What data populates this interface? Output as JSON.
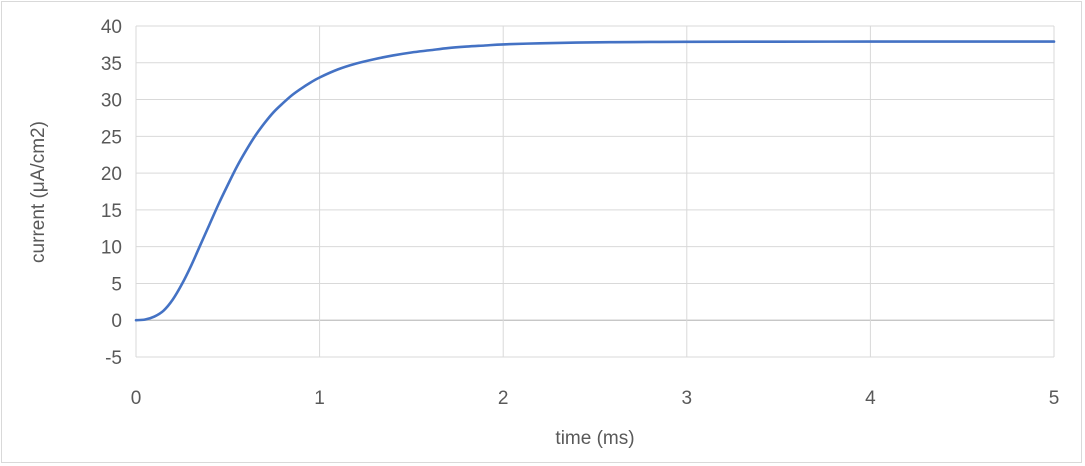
{
  "chart_data": {
    "type": "line",
    "title": "",
    "xlabel": "time (ms)",
    "ylabel": "current (μA/cm2)",
    "xlim": [
      0,
      5
    ],
    "ylim": [
      -5,
      40
    ],
    "x_ticks": [
      0,
      1,
      2,
      3,
      4,
      5
    ],
    "y_ticks": [
      -5,
      0,
      5,
      10,
      15,
      20,
      25,
      30,
      35,
      40
    ],
    "grid": true,
    "legend": "none",
    "series": [
      {
        "color": "#4472c4",
        "x": [
          0,
          0.05,
          0.1,
          0.15,
          0.2,
          0.25,
          0.3,
          0.35,
          0.4,
          0.45,
          0.5,
          0.55,
          0.6,
          0.65,
          0.7,
          0.75,
          0.8,
          0.85,
          0.9,
          0.95,
          1.0,
          1.1,
          1.2,
          1.3,
          1.4,
          1.5,
          1.6,
          1.7,
          1.8,
          1.9,
          2.0,
          2.2,
          2.4,
          2.6,
          2.8,
          3.0,
          3.5,
          4.0,
          4.5,
          5.0
        ],
        "y": [
          0,
          0.1,
          0.5,
          1.3,
          2.8,
          4.9,
          7.4,
          10.2,
          13.0,
          15.8,
          18.4,
          20.9,
          23.1,
          25.1,
          26.8,
          28.3,
          29.5,
          30.6,
          31.5,
          32.3,
          33.0,
          34.1,
          34.9,
          35.5,
          36.0,
          36.4,
          36.7,
          37.0,
          37.2,
          37.35,
          37.5,
          37.65,
          37.75,
          37.8,
          37.83,
          37.85,
          37.87,
          37.88,
          37.88,
          37.88
        ]
      }
    ]
  }
}
